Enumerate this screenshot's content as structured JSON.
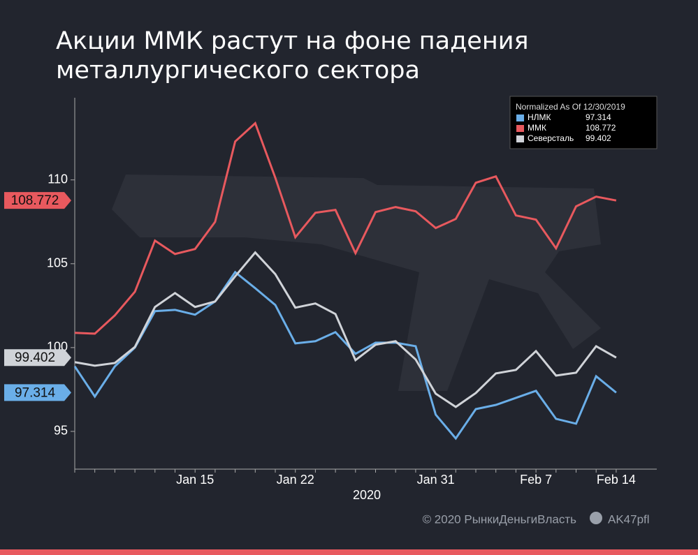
{
  "chart_data": {
    "type": "line",
    "title": "Акции ММК растут на фоне падения металлургического сектора",
    "legend_title": "Normalized As Of 12/30/2019",
    "xlabel": "2020",
    "categories": [
      null,
      null,
      null,
      null,
      null,
      null,
      "Jan 15",
      null,
      null,
      null,
      null,
      "Jan 22",
      null,
      null,
      null,
      null,
      null,
      null,
      "Jan 31",
      null,
      null,
      null,
      null,
      "Feb 7",
      null,
      null,
      null,
      "Feb 14"
    ],
    "series": [
      {
        "name": "НЛМК",
        "color": "#6aaee8",
        "values": [
          98.88,
          97.08,
          98.88,
          100.0,
          102.17,
          102.25,
          101.96,
          102.75,
          104.5,
          103.54,
          102.54,
          100.25,
          100.38,
          100.92,
          99.63,
          100.29,
          100.29,
          100.08,
          96.0,
          94.58,
          96.33,
          96.58,
          97.0,
          97.42,
          95.75,
          95.46,
          98.29,
          97.314
        ]
      },
      {
        "name": "ММК",
        "color": "#e8595e",
        "values": [
          100.88,
          100.83,
          101.92,
          103.33,
          106.38,
          105.58,
          105.88,
          107.5,
          112.29,
          113.38,
          110.13,
          106.58,
          108.04,
          108.21,
          105.63,
          108.08,
          108.38,
          108.13,
          107.13,
          107.67,
          109.83,
          110.21,
          107.88,
          107.63,
          105.92,
          108.42,
          109.0,
          108.772
        ]
      },
      {
        "name": "Северсталь",
        "color": "#d0d3d8",
        "values": [
          99.13,
          98.92,
          99.08,
          100.04,
          102.42,
          103.25,
          102.42,
          102.75,
          104.25,
          105.67,
          104.38,
          102.38,
          102.63,
          102.0,
          99.25,
          100.17,
          100.38,
          99.29,
          97.25,
          96.46,
          97.29,
          98.46,
          98.67,
          99.79,
          98.33,
          98.5,
          100.08,
          99.402
        ]
      }
    ],
    "ylim": [
      92.75,
      114.9
    ],
    "yticks": [
      95,
      100,
      105,
      110
    ],
    "source": "© 2020  РынкиДеньгиВласть",
    "handle": "AK47pfl"
  }
}
